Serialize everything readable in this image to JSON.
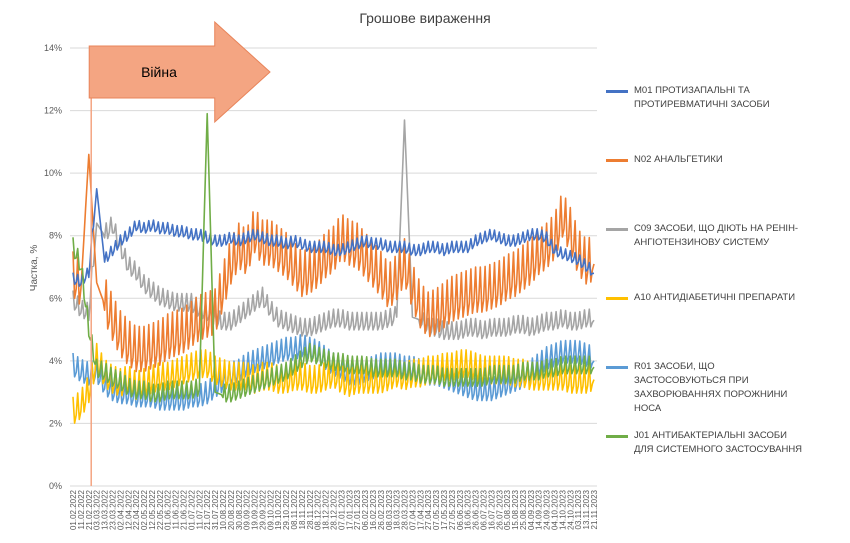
{
  "chart_data": {
    "type": "line",
    "title": "Грошове вираження",
    "ylabel": "Частка, %",
    "xlabel": "",
    "ylim": [
      0,
      14
    ],
    "yticks": [
      "0%",
      "2%",
      "4%",
      "6%",
      "8%",
      "10%",
      "12%",
      "14%"
    ],
    "grid": true,
    "legend_position": "right",
    "annotation": {
      "label": "Війна",
      "from": "24.02.2022",
      "to": "30.07.2022",
      "color": "#f4a582"
    },
    "x": [
      "01.02.2022",
      "11.02.2022",
      "21.02.2022",
      "03.03.2022",
      "13.03.2022",
      "23.03.2022",
      "02.04.2022",
      "12.04.2022",
      "22.04.2022",
      "02.05.2022",
      "12.05.2022",
      "22.05.2022",
      "01.06.2022",
      "11.06.2022",
      "21.06.2022",
      "01.07.2022",
      "11.07.2022",
      "21.07.2022",
      "31.07.2022",
      "10.08.2022",
      "20.08.2022",
      "30.08.2022",
      "09.09.2022",
      "19.09.2022",
      "29.09.2022",
      "09.10.2022",
      "19.10.2022",
      "29.10.2022",
      "08.11.2022",
      "18.11.2022",
      "28.11.2022",
      "08.12.2022",
      "18.12.2022",
      "28.12.2022",
      "07.01.2023",
      "17.01.2023",
      "27.01.2023",
      "06.02.2023",
      "16.02.2023",
      "26.02.2023",
      "08.03.2023",
      "18.03.2023",
      "28.03.2023",
      "07.04.2023",
      "17.04.2023",
      "27.04.2023",
      "07.05.2023",
      "17.05.2023",
      "27.05.2023",
      "06.06.2023",
      "16.06.2023",
      "26.06.2023",
      "06.07.2023",
      "16.07.2023",
      "26.07.2023",
      "05.08.2023",
      "15.08.2023",
      "25.08.2023",
      "04.09.2023",
      "14.09.2023",
      "24.09.2023",
      "04.10.2023",
      "14.10.2023",
      "24.10.2023",
      "03.11.2023",
      "13.11.2023",
      "21.11.2023"
    ],
    "series": [
      {
        "name": "M01 ПРОТИЗАПАЛЬНІ ТА ПРОТИРЕВМАТИЧНІ ЗАСОБИ",
        "color": "#4472c4",
        "values": [
          6.6,
          6.5,
          6.8,
          9.5,
          7.2,
          7.5,
          7.8,
          8.0,
          8.3,
          8.2,
          8.3,
          8.2,
          8.2,
          8.1,
          8.1,
          8.0,
          8.0,
          7.9,
          7.8,
          7.8,
          7.9,
          7.8,
          7.9,
          8.0,
          7.9,
          7.8,
          7.8,
          7.7,
          7.8,
          7.7,
          7.6,
          7.6,
          7.6,
          7.5,
          7.5,
          7.6,
          7.7,
          7.8,
          7.7,
          7.7,
          7.6,
          7.6,
          7.6,
          7.5,
          7.5,
          7.6,
          7.6,
          7.5,
          7.6,
          7.6,
          7.6,
          7.8,
          7.9,
          8.0,
          7.9,
          7.8,
          7.8,
          7.9,
          8.0,
          8.0,
          7.9,
          7.5,
          7.4,
          7.3,
          7.2,
          7.0,
          6.8
        ]
      },
      {
        "name": "N02 АНАЛЬГЕТИКИ",
        "color": "#ed7d31",
        "values": [
          6.6,
          6.3,
          10.6,
          6.5,
          5.8,
          5.2,
          4.7,
          4.4,
          4.2,
          4.2,
          4.3,
          4.4,
          4.6,
          4.7,
          4.8,
          5.0,
          5.2,
          5.3,
          5.4,
          6.2,
          7.0,
          7.5,
          7.3,
          8.0,
          7.6,
          7.6,
          7.4,
          7.2,
          6.9,
          6.6,
          6.7,
          6.9,
          7.2,
          7.4,
          7.8,
          7.6,
          7.5,
          7.2,
          6.9,
          6.6,
          6.2,
          6.5,
          7.0,
          6.2,
          5.6,
          5.3,
          5.4,
          5.6,
          5.8,
          5.9,
          6.0,
          6.1,
          6.1,
          6.2,
          6.3,
          6.5,
          6.6,
          6.8,
          7.0,
          7.3,
          7.5,
          7.8,
          8.5,
          8.0,
          7.3,
          7.0,
          7.1
        ]
      },
      {
        "name": "C09 ЗАСОБИ, ЩО ДІЮТЬ НА РЕНІН-АНГІОТЕНЗИНОВУ СИСТЕМУ",
        "color": "#a5a5a5",
        "values": [
          5.9,
          5.6,
          5.5,
          8.4,
          8.0,
          8.3,
          7.6,
          7.0,
          6.8,
          6.4,
          6.2,
          6.0,
          5.9,
          5.8,
          5.8,
          5.8,
          5.6,
          5.5,
          5.3,
          5.2,
          5.2,
          5.4,
          5.6,
          5.8,
          6.0,
          5.6,
          5.3,
          5.2,
          5.1,
          5.0,
          5.0,
          5.1,
          5.2,
          5.3,
          5.3,
          5.2,
          5.2,
          5.2,
          5.2,
          5.2,
          5.3,
          5.4,
          11.7,
          5.4,
          5.3,
          5.0,
          5.0,
          4.9,
          4.9,
          4.9,
          5.0,
          5.0,
          4.9,
          5.0,
          5.0,
          5.0,
          5.1,
          5.1,
          5.0,
          5.1,
          5.2,
          5.2,
          5.3,
          5.2,
          5.2,
          5.3,
          5.3
        ]
      },
      {
        "name": "A10 АНТИДІАБЕТИЧНІ ПРЕПАРАТИ",
        "color": "#ffc000",
        "values": [
          2.3,
          2.5,
          3.0,
          4.0,
          3.5,
          3.3,
          3.2,
          3.3,
          3.1,
          3.2,
          3.3,
          3.4,
          3.4,
          3.5,
          3.6,
          3.7,
          3.8,
          3.8,
          3.6,
          3.5,
          3.4,
          3.4,
          3.4,
          3.3,
          3.4,
          3.4,
          3.3,
          3.3,
          3.4,
          3.4,
          3.3,
          3.3,
          3.4,
          3.5,
          3.3,
          3.2,
          3.3,
          3.3,
          3.3,
          3.3,
          3.4,
          3.5,
          3.4,
          3.5,
          3.5,
          3.6,
          3.6,
          3.7,
          3.7,
          3.8,
          3.8,
          3.7,
          3.6,
          3.6,
          3.6,
          3.6,
          3.5,
          3.5,
          3.4,
          3.4,
          3.4,
          3.4,
          3.4,
          3.3,
          3.3,
          3.3,
          3.4
        ]
      },
      {
        "name": "R01 ЗАСОБИ, ЩО ЗАСТОСОВУЮТЬСЯ ПРИ ЗАХВОРЮВАННЯХ ПОРОЖНИНИ НОСА",
        "color": "#5b9bd5",
        "values": [
          3.8,
          3.6,
          3.5,
          3.6,
          3.2,
          3.0,
          2.9,
          2.9,
          2.8,
          2.8,
          2.8,
          2.7,
          2.7,
          2.7,
          2.7,
          2.8,
          2.8,
          2.9,
          3.1,
          3.3,
          3.5,
          3.6,
          3.8,
          3.9,
          4.0,
          4.1,
          4.2,
          4.3,
          4.3,
          4.4,
          4.3,
          4.2,
          4.0,
          3.8,
          3.7,
          3.5,
          3.5,
          3.6,
          3.7,
          3.8,
          3.8,
          3.8,
          3.7,
          3.7,
          3.6,
          3.5,
          3.5,
          3.4,
          3.3,
          3.2,
          3.1,
          3.0,
          3.0,
          3.0,
          3.1,
          3.2,
          3.3,
          3.4,
          3.6,
          3.8,
          4.0,
          4.1,
          4.2,
          4.2,
          4.2,
          4.1,
          4.0
        ]
      },
      {
        "name": "J01 АНТИБАКТЕРІАЛЬНІ ЗАСОБИ ДЛЯ СИСТЕМНОГО ЗАСТОСУВАННЯ",
        "color": "#70ad47",
        "values": [
          7.6,
          7.0,
          5.0,
          3.7,
          3.6,
          3.4,
          3.3,
          3.1,
          3.0,
          3.0,
          2.9,
          2.9,
          3.0,
          3.0,
          3.0,
          3.0,
          3.1,
          11.9,
          3.0,
          2.9,
          2.9,
          3.0,
          3.1,
          3.2,
          3.3,
          3.4,
          3.5,
          3.6,
          3.8,
          4.0,
          4.2,
          4.1,
          4.0,
          3.9,
          3.9,
          3.8,
          3.8,
          3.8,
          3.7,
          3.7,
          3.7,
          3.7,
          3.6,
          3.6,
          3.5,
          3.5,
          3.5,
          3.4,
          3.4,
          3.4,
          3.4,
          3.4,
          3.4,
          3.5,
          3.5,
          3.5,
          3.5,
          3.6,
          3.6,
          3.6,
          3.7,
          3.7,
          3.8,
          3.8,
          3.8,
          3.8,
          3.8
        ]
      }
    ]
  }
}
